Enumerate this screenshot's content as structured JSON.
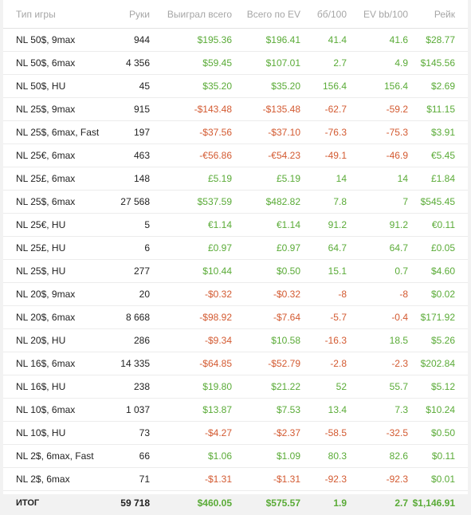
{
  "colors": {
    "positive": "#5aab37",
    "negative": "#d35a31",
    "header_text": "#a6a6a6",
    "text": "#222222"
  },
  "columns": [
    "Тип игры",
    "Руки",
    "Выиграл всего",
    "Всего по EV",
    "бб/100",
    "EV bb/100",
    "Рейк"
  ],
  "rows": [
    {
      "game": "NL 50$, 9max",
      "hands": "944",
      "won": "$195.36",
      "ev": "$196.41",
      "bb100": "41.4",
      "evbb100": "41.6",
      "rake": "$28.77",
      "won_sign": "pos",
      "ev_sign": "pos",
      "bb_sign": "pos",
      "evbb_sign": "pos"
    },
    {
      "game": "NL 50$, 6max",
      "hands": "4 356",
      "won": "$59.45",
      "ev": "$107.01",
      "bb100": "2.7",
      "evbb100": "4.9",
      "rake": "$145.56",
      "won_sign": "pos",
      "ev_sign": "pos",
      "bb_sign": "pos",
      "evbb_sign": "pos"
    },
    {
      "game": "NL 50$, HU",
      "hands": "45",
      "won": "$35.20",
      "ev": "$35.20",
      "bb100": "156.4",
      "evbb100": "156.4",
      "rake": "$2.69",
      "won_sign": "pos",
      "ev_sign": "pos",
      "bb_sign": "pos",
      "evbb_sign": "pos"
    },
    {
      "game": "NL 25$, 9max",
      "hands": "915",
      "won": "-$143.48",
      "ev": "-$135.48",
      "bb100": "-62.7",
      "evbb100": "-59.2",
      "rake": "$11.15",
      "won_sign": "neg",
      "ev_sign": "neg",
      "bb_sign": "neg",
      "evbb_sign": "neg"
    },
    {
      "game": "NL 25$, 6max, Fast",
      "hands": "197",
      "won": "-$37.56",
      "ev": "-$37.10",
      "bb100": "-76.3",
      "evbb100": "-75.3",
      "rake": "$3.91",
      "won_sign": "neg",
      "ev_sign": "neg",
      "bb_sign": "neg",
      "evbb_sign": "neg"
    },
    {
      "game": "NL 25€, 6max",
      "hands": "463",
      "won": "-€56.86",
      "ev": "-€54.23",
      "bb100": "-49.1",
      "evbb100": "-46.9",
      "rake": "€5.45",
      "won_sign": "neg",
      "ev_sign": "neg",
      "bb_sign": "neg",
      "evbb_sign": "neg"
    },
    {
      "game": "NL 25£, 6max",
      "hands": "148",
      "won": "£5.19",
      "ev": "£5.19",
      "bb100": "14",
      "evbb100": "14",
      "rake": "£1.84",
      "won_sign": "pos",
      "ev_sign": "pos",
      "bb_sign": "pos",
      "evbb_sign": "pos"
    },
    {
      "game": "NL 25$, 6max",
      "hands": "27 568",
      "won": "$537.59",
      "ev": "$482.82",
      "bb100": "7.8",
      "evbb100": "7",
      "rake": "$545.45",
      "won_sign": "pos",
      "ev_sign": "pos",
      "bb_sign": "pos",
      "evbb_sign": "pos"
    },
    {
      "game": "NL 25€, HU",
      "hands": "5",
      "won": "€1.14",
      "ev": "€1.14",
      "bb100": "91.2",
      "evbb100": "91.2",
      "rake": "€0.11",
      "won_sign": "pos",
      "ev_sign": "pos",
      "bb_sign": "pos",
      "evbb_sign": "pos"
    },
    {
      "game": "NL 25£, HU",
      "hands": "6",
      "won": "£0.97",
      "ev": "£0.97",
      "bb100": "64.7",
      "evbb100": "64.7",
      "rake": "£0.05",
      "won_sign": "pos",
      "ev_sign": "pos",
      "bb_sign": "pos",
      "evbb_sign": "pos"
    },
    {
      "game": "NL 25$, HU",
      "hands": "277",
      "won": "$10.44",
      "ev": "$0.50",
      "bb100": "15.1",
      "evbb100": "0.7",
      "rake": "$4.60",
      "won_sign": "pos",
      "ev_sign": "pos",
      "bb_sign": "pos",
      "evbb_sign": "pos"
    },
    {
      "game": "NL 20$, 9max",
      "hands": "20",
      "won": "-$0.32",
      "ev": "-$0.32",
      "bb100": "-8",
      "evbb100": "-8",
      "rake": "$0.02",
      "won_sign": "neg",
      "ev_sign": "neg",
      "bb_sign": "neg",
      "evbb_sign": "neg"
    },
    {
      "game": "NL 20$, 6max",
      "hands": "8 668",
      "won": "-$98.92",
      "ev": "-$7.64",
      "bb100": "-5.7",
      "evbb100": "-0.4",
      "rake": "$171.92",
      "won_sign": "neg",
      "ev_sign": "neg",
      "bb_sign": "neg",
      "evbb_sign": "neg"
    },
    {
      "game": "NL 20$, HU",
      "hands": "286",
      "won": "-$9.34",
      "ev": "$10.58",
      "bb100": "-16.3",
      "evbb100": "18.5",
      "rake": "$5.26",
      "won_sign": "neg",
      "ev_sign": "pos",
      "bb_sign": "neg",
      "evbb_sign": "pos"
    },
    {
      "game": "NL 16$, 6max",
      "hands": "14 335",
      "won": "-$64.85",
      "ev": "-$52.79",
      "bb100": "-2.8",
      "evbb100": "-2.3",
      "rake": "$202.84",
      "won_sign": "neg",
      "ev_sign": "neg",
      "bb_sign": "neg",
      "evbb_sign": "neg"
    },
    {
      "game": "NL 16$, HU",
      "hands": "238",
      "won": "$19.80",
      "ev": "$21.22",
      "bb100": "52",
      "evbb100": "55.7",
      "rake": "$5.12",
      "won_sign": "pos",
      "ev_sign": "pos",
      "bb_sign": "pos",
      "evbb_sign": "pos"
    },
    {
      "game": "NL 10$, 6max",
      "hands": "1 037",
      "won": "$13.87",
      "ev": "$7.53",
      "bb100": "13.4",
      "evbb100": "7.3",
      "rake": "$10.24",
      "won_sign": "pos",
      "ev_sign": "pos",
      "bb_sign": "pos",
      "evbb_sign": "pos"
    },
    {
      "game": "NL 10$, HU",
      "hands": "73",
      "won": "-$4.27",
      "ev": "-$2.37",
      "bb100": "-58.5",
      "evbb100": "-32.5",
      "rake": "$0.50",
      "won_sign": "neg",
      "ev_sign": "neg",
      "bb_sign": "neg",
      "evbb_sign": "neg"
    },
    {
      "game": "NL 2$, 6max, Fast",
      "hands": "66",
      "won": "$1.06",
      "ev": "$1.09",
      "bb100": "80.3",
      "evbb100": "82.6",
      "rake": "$0.11",
      "won_sign": "pos",
      "ev_sign": "pos",
      "bb_sign": "pos",
      "evbb_sign": "pos"
    },
    {
      "game": "NL 2$, 6max",
      "hands": "71",
      "won": "-$1.31",
      "ev": "-$1.31",
      "bb100": "-92.3",
      "evbb100": "-92.3",
      "rake": "$0.01",
      "won_sign": "neg",
      "ev_sign": "neg",
      "bb_sign": "neg",
      "evbb_sign": "neg"
    }
  ],
  "total": {
    "game": "ИТОГ",
    "hands": "59 718",
    "won": "$460.05",
    "ev": "$575.57",
    "bb100": "1.9",
    "evbb100": "2.7",
    "rake": "$1,146.91"
  }
}
